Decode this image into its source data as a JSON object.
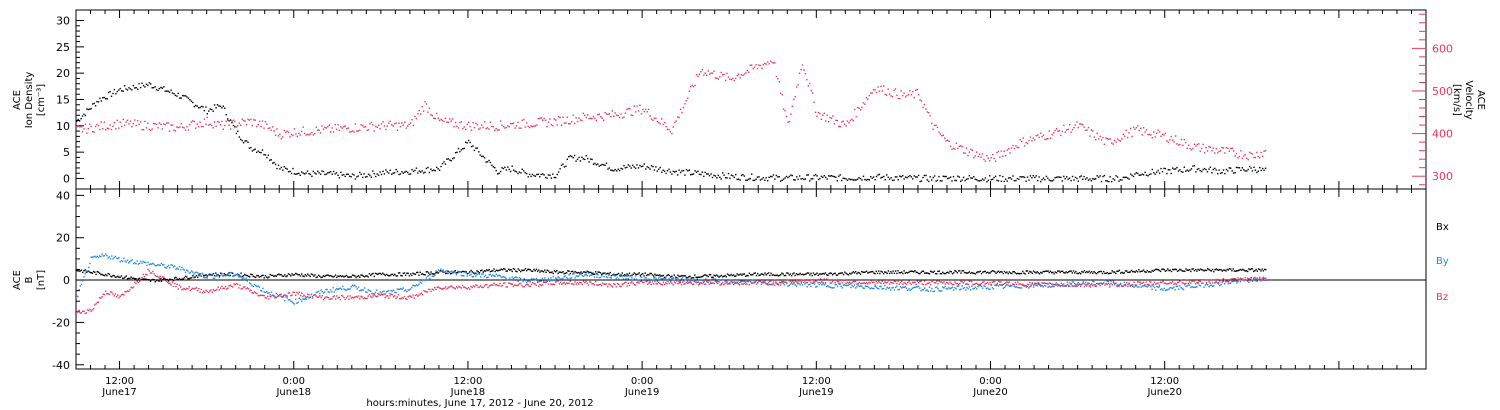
{
  "colors": {
    "density": "#000000",
    "velocity": "#e8365d",
    "bx": "#000000",
    "by": "#1e88e5",
    "bz": "#e8365d"
  },
  "chart_data": [
    {
      "type": "scatter",
      "panel": "top",
      "ylabel": "ACE Ion Density [cm⁻³]",
      "ylabel_lines": [
        "ACE",
        "Ion Density",
        "[cm⁻³]"
      ],
      "ylim": [
        -2,
        32
      ],
      "yticks": [
        0,
        5,
        10,
        15,
        20,
        25,
        30
      ],
      "y2label": "ACE Velocity [km/s]",
      "y2label_lines": [
        "ACE",
        "Velocity",
        "[km/s]"
      ],
      "y2lim": [
        270,
        690
      ],
      "y2ticks": [
        300,
        400,
        500,
        600
      ],
      "x_hours_since_start": true,
      "series": [
        {
          "name": "density",
          "color": "#000000",
          "x": [
            -3,
            -1.5,
            0,
            2,
            4,
            6,
            7,
            8,
            9,
            10,
            11,
            12,
            13,
            14,
            15,
            16,
            18,
            20,
            22,
            24,
            26,
            27,
            28,
            29,
            30,
            31,
            32,
            33,
            34,
            36,
            38,
            40,
            42,
            44,
            46,
            48,
            50,
            52,
            54,
            56,
            58,
            60,
            62,
            64,
            66,
            68,
            69,
            70,
            72,
            74,
            76,
            78,
            79
          ],
          "y": [
            11,
            15,
            17,
            18,
            16,
            13,
            14,
            9,
            6,
            5,
            2,
            1.5,
            1,
            1,
            0.8,
            0.5,
            1.2,
            1.5,
            2,
            7,
            1.5,
            2,
            1,
            0.8,
            0.8,
            4,
            4,
            3,
            2,
            2.5,
            1.5,
            1,
            0.5,
            0.3,
            0.2,
            0.3,
            0.2,
            0.4,
            0.2,
            0.1,
            0.2,
            0.1,
            0.1,
            0.1,
            0.1,
            0.1,
            0.1,
            1,
            1.5,
            2,
            1.5,
            2,
            1.5
          ]
        },
        {
          "name": "velocity",
          "color": "#e8365d",
          "x": [
            -3,
            0,
            2,
            4,
            6,
            7,
            8,
            9,
            10,
            11,
            12,
            14,
            16,
            18,
            20,
            21,
            22,
            24,
            26,
            28,
            30,
            32,
            34,
            36,
            38,
            40,
            42,
            44,
            45,
            46,
            47,
            48,
            50,
            52,
            54,
            55,
            56,
            57,
            58,
            60,
            62,
            64,
            66,
            68,
            70,
            72,
            74,
            76,
            78,
            79
          ],
          "y": [
            410,
            425,
            420,
            415,
            430,
            420,
            425,
            430,
            420,
            400,
            405,
            410,
            415,
            420,
            420,
            470,
            430,
            420,
            420,
            425,
            430,
            440,
            445,
            460,
            410,
            550,
            530,
            560,
            575,
            420,
            570,
            450,
            420,
            510,
            490,
            495,
            420,
            380,
            365,
            340,
            380,
            400,
            420,
            380,
            410,
            395,
            370,
            360,
            350,
            360
          ]
        }
      ]
    },
    {
      "type": "scatter",
      "panel": "bottom",
      "ylabel": "ACE B [nT]",
      "ylabel_lines": [
        "ACE",
        "B",
        "[nT]"
      ],
      "ylim": [
        -42,
        43
      ],
      "yticks": [
        -40,
        -20,
        0,
        20,
        40
      ],
      "legend": [
        "Bx",
        "By",
        "Bz"
      ],
      "legend_placement": "right",
      "xlabel": "hours:minutes, June 17, 2012 - June 20, 2012",
      "xticks": [
        {
          "label": "12:00",
          "sub": "June17"
        },
        {
          "label": "0:00",
          "sub": "June18"
        },
        {
          "label": "12:00",
          "sub": "June18"
        },
        {
          "label": "0:00",
          "sub": "June19"
        },
        {
          "label": "12:00",
          "sub": "June19"
        },
        {
          "label": "0:00",
          "sub": "June20"
        },
        {
          "label": "12:00",
          "sub": "June20"
        }
      ],
      "series": [
        {
          "name": "Bx",
          "color": "#000000",
          "x": [
            -3,
            -1,
            0,
            2,
            4,
            6,
            8,
            10,
            12,
            14,
            16,
            18,
            20,
            22,
            24,
            26,
            28,
            30,
            32,
            34,
            36,
            38,
            40,
            44,
            48,
            52,
            56,
            60,
            64,
            68,
            72,
            76,
            79
          ],
          "y": [
            5,
            3,
            2,
            0,
            1,
            3,
            3,
            2,
            3,
            2,
            2,
            3,
            3,
            4,
            4,
            5,
            5,
            4,
            4,
            3,
            3,
            2,
            2,
            3,
            3,
            4,
            4,
            4,
            4,
            4,
            5,
            5,
            5
          ]
        },
        {
          "name": "By",
          "color": "#1e88e5",
          "x": [
            -3,
            -2,
            -1,
            0,
            2,
            4,
            6,
            8,
            10,
            12,
            14,
            16,
            18,
            20,
            22,
            24,
            26,
            28,
            30,
            32,
            34,
            36,
            40,
            44,
            48,
            52,
            56,
            60,
            64,
            68,
            72,
            76,
            79
          ],
          "y": [
            -8,
            10,
            12,
            10,
            8,
            6,
            2,
            3,
            -5,
            -10,
            -5,
            -3,
            -6,
            -4,
            5,
            3,
            2,
            0,
            1,
            3,
            2,
            1,
            0,
            -1,
            -2,
            -3,
            -4,
            -3,
            -2,
            -1,
            -4,
            -1,
            1
          ]
        },
        {
          "name": "Bz",
          "color": "#e8365d",
          "x": [
            -3,
            -2,
            -1,
            0,
            2,
            4,
            6,
            8,
            10,
            12,
            14,
            16,
            18,
            20,
            22,
            24,
            26,
            28,
            30,
            32,
            34,
            36,
            40,
            44,
            48,
            52,
            56,
            60,
            64,
            68,
            72,
            76,
            79
          ],
          "y": [
            -15,
            -14,
            -5,
            -8,
            5,
            -3,
            -5,
            -2,
            -8,
            -6,
            -8,
            -8,
            -7,
            -8,
            -3,
            -3,
            -2,
            -2,
            -1,
            -1,
            -2,
            -1,
            -1,
            -1,
            0,
            -1,
            -1,
            -1,
            -2,
            -2,
            -1,
            0,
            1
          ]
        }
      ]
    }
  ]
}
